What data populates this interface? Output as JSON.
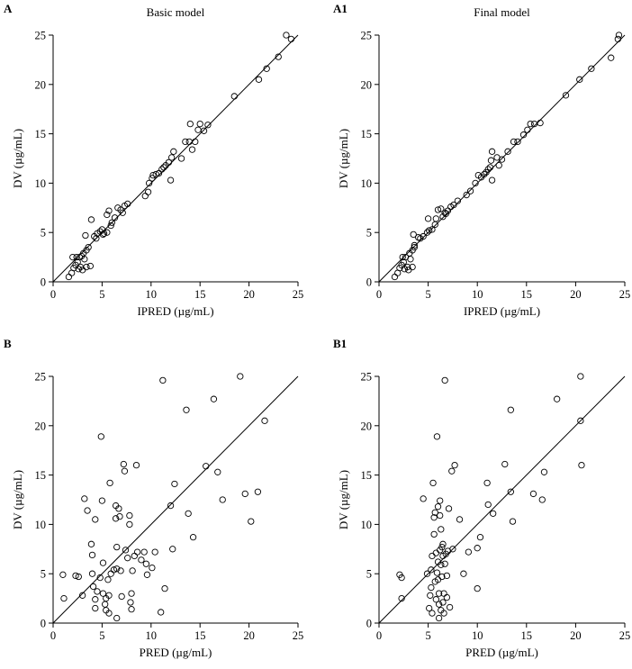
{
  "chart_data": [
    {
      "type": "scatter",
      "panel_label": "A",
      "title": "Basic model",
      "xlabel": "IPRED (µg/mL)",
      "ylabel": "DV (µg/mL)",
      "xlim": [
        0,
        25
      ],
      "ylim": [
        0,
        25
      ],
      "xticks": [
        0,
        5,
        10,
        15,
        20,
        25
      ],
      "yticks": [
        0,
        5,
        10,
        15,
        20,
        25
      ],
      "reference_line": "identity",
      "grid": false,
      "points": [
        [
          1.6,
          0.5
        ],
        [
          1.9,
          0.9
        ],
        [
          2.1,
          1.4
        ],
        [
          2.3,
          1.7
        ],
        [
          2.5,
          2.0
        ],
        [
          2.6,
          1.3
        ],
        [
          2.8,
          1.5
        ],
        [
          2.7,
          2.5
        ],
        [
          2.4,
          2.5
        ],
        [
          2.0,
          2.5
        ],
        [
          3.0,
          1.2
        ],
        [
          3.4,
          1.5
        ],
        [
          3.8,
          1.6
        ],
        [
          3.1,
          2.9
        ],
        [
          3.4,
          3.2
        ],
        [
          3.6,
          3.5
        ],
        [
          3.3,
          4.7
        ],
        [
          4.4,
          4.4
        ],
        [
          4.5,
          4.9
        ],
        [
          3.9,
          6.3
        ],
        [
          4.8,
          5.1
        ],
        [
          5.0,
          5.3
        ],
        [
          5.2,
          4.9
        ],
        [
          5.5,
          5.0
        ],
        [
          5.5,
          6.8
        ],
        [
          5.7,
          7.2
        ],
        [
          6.0,
          6.0
        ],
        [
          6.3,
          6.5
        ],
        [
          6.6,
          7.5
        ],
        [
          6.9,
          7.3
        ],
        [
          7.1,
          7.0
        ],
        [
          7.3,
          7.7
        ],
        [
          7.6,
          7.9
        ],
        [
          9.4,
          8.7
        ],
        [
          9.7,
          9.1
        ],
        [
          9.8,
          10.0
        ],
        [
          10.1,
          10.5
        ],
        [
          10.2,
          10.8
        ],
        [
          10.5,
          10.9
        ],
        [
          10.8,
          11.0
        ],
        [
          11.1,
          11.4
        ],
        [
          11.3,
          11.6
        ],
        [
          11.5,
          11.8
        ],
        [
          11.8,
          12.1
        ],
        [
          12.0,
          10.3
        ],
        [
          12.1,
          12.6
        ],
        [
          12.3,
          13.2
        ],
        [
          13.1,
          12.5
        ],
        [
          13.5,
          14.2
        ],
        [
          13.9,
          14.2
        ],
        [
          14.0,
          16.0
        ],
        [
          14.2,
          13.4
        ],
        [
          14.5,
          14.2
        ],
        [
          14.8,
          15.4
        ],
        [
          15.0,
          16.0
        ],
        [
          15.4,
          15.3
        ],
        [
          15.8,
          15.9
        ],
        [
          18.5,
          18.8
        ],
        [
          21.0,
          20.5
        ],
        [
          21.8,
          21.6
        ],
        [
          23.0,
          22.8
        ],
        [
          23.8,
          25.0
        ],
        [
          24.3,
          24.6
        ],
        [
          5.1,
          4.8
        ],
        [
          4.2,
          4.6
        ],
        [
          3.2,
          2.3
        ],
        [
          2.9,
          2.6
        ],
        [
          5.9,
          5.7
        ]
      ]
    },
    {
      "type": "scatter",
      "panel_label": "A1",
      "title": "Final model",
      "xlabel": "IPRED (µg/mL)",
      "ylabel": "DV (µg/mL)",
      "xlim": [
        0,
        25
      ],
      "ylim": [
        0,
        25
      ],
      "xticks": [
        0,
        5,
        10,
        15,
        20,
        25
      ],
      "yticks": [
        0,
        5,
        10,
        15,
        20,
        25
      ],
      "reference_line": "identity",
      "grid": false,
      "points": [
        [
          1.6,
          0.5
        ],
        [
          1.9,
          0.9
        ],
        [
          2.1,
          1.4
        ],
        [
          2.3,
          1.7
        ],
        [
          2.5,
          2.0
        ],
        [
          2.6,
          1.3
        ],
        [
          2.9,
          1.5
        ],
        [
          2.7,
          2.5
        ],
        [
          2.4,
          2.5
        ],
        [
          3.0,
          1.2
        ],
        [
          3.4,
          1.5
        ],
        [
          3.2,
          2.3
        ],
        [
          3.1,
          2.9
        ],
        [
          3.4,
          3.2
        ],
        [
          3.6,
          3.5
        ],
        [
          3.5,
          4.8
        ],
        [
          4.2,
          4.4
        ],
        [
          4.5,
          4.6
        ],
        [
          4.9,
          5.0
        ],
        [
          5.0,
          6.4
        ],
        [
          5.1,
          5.2
        ],
        [
          5.4,
          5.3
        ],
        [
          5.7,
          5.8
        ],
        [
          5.8,
          6.4
        ],
        [
          6.0,
          7.3
        ],
        [
          6.3,
          7.4
        ],
        [
          6.5,
          6.6
        ],
        [
          6.7,
          7.0
        ],
        [
          7.0,
          7.2
        ],
        [
          7.3,
          7.6
        ],
        [
          7.6,
          7.8
        ],
        [
          8.0,
          8.2
        ],
        [
          8.9,
          8.8
        ],
        [
          9.3,
          9.2
        ],
        [
          9.8,
          10.0
        ],
        [
          10.4,
          10.6
        ],
        [
          10.7,
          10.9
        ],
        [
          10.9,
          11.1
        ],
        [
          11.1,
          11.4
        ],
        [
          11.3,
          11.6
        ],
        [
          11.5,
          10.3
        ],
        [
          11.4,
          12.3
        ],
        [
          11.5,
          13.2
        ],
        [
          12.0,
          12.6
        ],
        [
          12.5,
          12.4
        ],
        [
          13.1,
          13.2
        ],
        [
          13.7,
          14.2
        ],
        [
          14.1,
          14.2
        ],
        [
          14.7,
          14.9
        ],
        [
          15.1,
          15.4
        ],
        [
          15.4,
          16.0
        ],
        [
          15.8,
          16.0
        ],
        [
          16.4,
          16.1
        ],
        [
          19.0,
          18.9
        ],
        [
          20.4,
          20.5
        ],
        [
          21.6,
          21.6
        ],
        [
          23.6,
          22.7
        ],
        [
          24.3,
          24.6
        ],
        [
          24.4,
          25.0
        ],
        [
          4.0,
          4.5
        ],
        [
          3.6,
          3.7
        ],
        [
          6.8,
          6.9
        ],
        [
          10.1,
          10.8
        ],
        [
          12.2,
          11.8
        ]
      ]
    },
    {
      "type": "scatter",
      "panel_label": "B",
      "title": "",
      "xlabel": "PRED (µg/mL)",
      "ylabel": "DV (µg/mL)",
      "xlim": [
        0,
        25
      ],
      "ylim": [
        0,
        25
      ],
      "xticks": [
        0,
        5,
        10,
        15,
        20,
        25
      ],
      "yticks": [
        0,
        5,
        10,
        15,
        20,
        25
      ],
      "reference_line": "identity",
      "grid": false,
      "points": [
        [
          1.0,
          4.9
        ],
        [
          1.1,
          2.5
        ],
        [
          2.3,
          4.8
        ],
        [
          3.0,
          2.8
        ],
        [
          3.2,
          12.6
        ],
        [
          3.5,
          11.4
        ],
        [
          3.9,
          8.0
        ],
        [
          4.0,
          6.9
        ],
        [
          4.0,
          5.0
        ],
        [
          4.1,
          3.7
        ],
        [
          4.3,
          2.4
        ],
        [
          4.3,
          1.5
        ],
        [
          4.3,
          10.5
        ],
        [
          4.8,
          4.6
        ],
        [
          4.9,
          18.9
        ],
        [
          5.0,
          12.4
        ],
        [
          5.1,
          6.1
        ],
        [
          5.1,
          3.0
        ],
        [
          5.3,
          1.9
        ],
        [
          5.4,
          2.5
        ],
        [
          5.4,
          1.3
        ],
        [
          5.6,
          4.4
        ],
        [
          5.7,
          1.0
        ],
        [
          5.8,
          14.2
        ],
        [
          5.9,
          5.0
        ],
        [
          6.2,
          5.4
        ],
        [
          6.4,
          11.9
        ],
        [
          6.4,
          10.6
        ],
        [
          6.5,
          7.7
        ],
        [
          6.5,
          5.5
        ],
        [
          6.5,
          0.5
        ],
        [
          6.7,
          11.6
        ],
        [
          6.8,
          10.8
        ],
        [
          7.0,
          2.7
        ],
        [
          7.2,
          16.1
        ],
        [
          7.3,
          15.4
        ],
        [
          7.4,
          7.4
        ],
        [
          7.6,
          6.6
        ],
        [
          7.8,
          10.0
        ],
        [
          7.8,
          10.9
        ],
        [
          7.9,
          2.1
        ],
        [
          8.0,
          3.0
        ],
        [
          8.1,
          5.3
        ],
        [
          8.3,
          6.8
        ],
        [
          8.5,
          16.0
        ],
        [
          8.6,
          7.2
        ],
        [
          9.3,
          7.2
        ],
        [
          9.5,
          6.0
        ],
        [
          9.6,
          4.9
        ],
        [
          10.1,
          5.6
        ],
        [
          10.4,
          7.2
        ],
        [
          11.0,
          1.1
        ],
        [
          11.2,
          24.6
        ],
        [
          11.4,
          3.5
        ],
        [
          12.0,
          11.9
        ],
        [
          12.2,
          7.5
        ],
        [
          12.4,
          14.1
        ],
        [
          13.6,
          21.6
        ],
        [
          13.8,
          11.1
        ],
        [
          14.3,
          8.7
        ],
        [
          15.6,
          15.9
        ],
        [
          16.4,
          22.7
        ],
        [
          16.8,
          15.3
        ],
        [
          17.3,
          12.5
        ],
        [
          19.1,
          25.0
        ],
        [
          19.6,
          13.1
        ],
        [
          20.2,
          10.3
        ],
        [
          20.9,
          13.3
        ],
        [
          21.6,
          20.5
        ],
        [
          2.6,
          4.7
        ],
        [
          4.5,
          3.2
        ],
        [
          5.7,
          2.8
        ],
        [
          6.9,
          5.3
        ],
        [
          8.0,
          1.4
        ],
        [
          9.0,
          6.4
        ]
      ]
    },
    {
      "type": "scatter",
      "panel_label": "B1",
      "title": "",
      "xlabel": "PRED (µg/mL)",
      "ylabel": "DV (µg/mL)",
      "xlim": [
        0,
        25
      ],
      "ylim": [
        0,
        25
      ],
      "xticks": [
        0,
        5,
        10,
        15,
        20,
        25
      ],
      "yticks": [
        0,
        5,
        10,
        15,
        20,
        25
      ],
      "reference_line": "identity",
      "grid": false,
      "points": [
        [
          2.1,
          4.9
        ],
        [
          2.3,
          4.6
        ],
        [
          2.3,
          2.5
        ],
        [
          4.5,
          12.6
        ],
        [
          4.9,
          5.0
        ],
        [
          5.1,
          1.5
        ],
        [
          5.2,
          2.8
        ],
        [
          5.3,
          3.6
        ],
        [
          5.3,
          5.4
        ],
        [
          5.4,
          6.8
        ],
        [
          5.4,
          1.0
        ],
        [
          5.5,
          14.2
        ],
        [
          5.6,
          10.7
        ],
        [
          5.6,
          9.0
        ],
        [
          5.7,
          11.2
        ],
        [
          5.7,
          4.2
        ],
        [
          5.8,
          2.4
        ],
        [
          5.9,
          5.1
        ],
        [
          5.9,
          18.9
        ],
        [
          6.0,
          11.8
        ],
        [
          6.0,
          6.2
        ],
        [
          6.1,
          3.0
        ],
        [
          6.1,
          1.9
        ],
        [
          6.1,
          0.5
        ],
        [
          6.2,
          12.4
        ],
        [
          6.2,
          10.9
        ],
        [
          6.2,
          7.4
        ],
        [
          6.3,
          5.9
        ],
        [
          6.3,
          1.3
        ],
        [
          6.3,
          9.5
        ],
        [
          6.4,
          7.7
        ],
        [
          6.4,
          4.7
        ],
        [
          6.5,
          8.0
        ],
        [
          6.5,
          6.8
        ],
        [
          6.5,
          2.1
        ],
        [
          6.6,
          3.0
        ],
        [
          6.6,
          1.0
        ],
        [
          6.7,
          24.6
        ],
        [
          6.8,
          7.0
        ],
        [
          6.9,
          4.8
        ],
        [
          7.0,
          7.3
        ],
        [
          7.1,
          11.6
        ],
        [
          7.2,
          1.6
        ],
        [
          7.4,
          15.4
        ],
        [
          7.5,
          7.5
        ],
        [
          7.7,
          16.0
        ],
        [
          8.2,
          10.5
        ],
        [
          8.6,
          5.0
        ],
        [
          9.1,
          7.2
        ],
        [
          10.0,
          7.6
        ],
        [
          10.0,
          3.5
        ],
        [
          10.3,
          8.7
        ],
        [
          11.0,
          14.2
        ],
        [
          11.1,
          12.0
        ],
        [
          11.6,
          11.1
        ],
        [
          12.8,
          16.1
        ],
        [
          13.4,
          13.3
        ],
        [
          13.4,
          21.6
        ],
        [
          13.6,
          10.3
        ],
        [
          15.7,
          13.1
        ],
        [
          16.6,
          12.5
        ],
        [
          16.8,
          15.3
        ],
        [
          18.1,
          22.7
        ],
        [
          20.5,
          20.5
        ],
        [
          20.5,
          25.0
        ],
        [
          20.6,
          16.0
        ],
        [
          5.8,
          7.1
        ],
        [
          6.0,
          4.4
        ],
        [
          6.7,
          6.0
        ],
        [
          6.9,
          2.6
        ]
      ]
    }
  ]
}
